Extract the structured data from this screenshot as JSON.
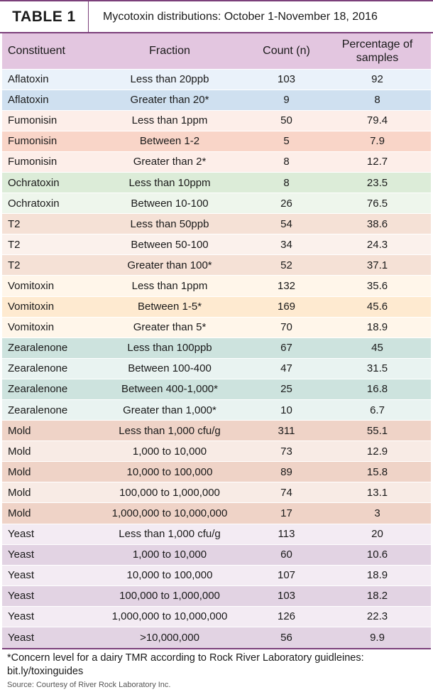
{
  "title": {
    "label": "TABLE 1",
    "text": "Mycotoxin distributions: October 1-November 18, 2016"
  },
  "columns": [
    "Constituent",
    "Fraction",
    "Count (n)",
    "Percentage of samples"
  ],
  "rows": [
    {
      "constituent": "Aflatoxin",
      "fraction": "Less than 20ppb",
      "count": "103",
      "percentage": "92",
      "color": "#eaf2fa"
    },
    {
      "constituent": "Aflatoxin",
      "fraction": "Greater than 20*",
      "count": "9",
      "percentage": "8",
      "color": "#cfe0f0"
    },
    {
      "constituent": "Fumonisin",
      "fraction": "Less than 1ppm",
      "count": "50",
      "percentage": "79.4",
      "color": "#fdeee9"
    },
    {
      "constituent": "Fumonisin",
      "fraction": "Between 1-2",
      "count": "5",
      "percentage": "7.9",
      "color": "#f9d5c8"
    },
    {
      "constituent": "Fumonisin",
      "fraction": "Greater than 2*",
      "count": "8",
      "percentage": "12.7",
      "color": "#fdeee9"
    },
    {
      "constituent": "Ochratoxin",
      "fraction": "Less than 10ppm",
      "count": "8",
      "percentage": "23.5",
      "color": "#dcecd8"
    },
    {
      "constituent": "Ochratoxin",
      "fraction": "Between 10-100",
      "count": "26",
      "percentage": "76.5",
      "color": "#eef6ec"
    },
    {
      "constituent": "T2",
      "fraction": "Less than 50ppb",
      "count": "54",
      "percentage": "38.6",
      "color": "#f5e1d6"
    },
    {
      "constituent": "T2",
      "fraction": "Between 50-100",
      "count": "34",
      "percentage": "24.3",
      "color": "#fbf1ec"
    },
    {
      "constituent": "T2",
      "fraction": "Greater than 100*",
      "count": "52",
      "percentage": "37.1",
      "color": "#f5e1d6"
    },
    {
      "constituent": "Vomitoxin",
      "fraction": "Less than 1ppm",
      "count": "132",
      "percentage": "35.6",
      "color": "#fff6ea"
    },
    {
      "constituent": "Vomitoxin",
      "fraction": "Between 1-5*",
      "count": "169",
      "percentage": "45.6",
      "color": "#feead0"
    },
    {
      "constituent": "Vomitoxin",
      "fraction": "Greater than 5*",
      "count": "70",
      "percentage": "18.9",
      "color": "#fff6ea"
    },
    {
      "constituent": "Zearalenone",
      "fraction": "Less than 100ppb",
      "count": "67",
      "percentage": "45",
      "color": "#cde3de"
    },
    {
      "constituent": "Zearalenone",
      "fraction": "Between 100-400",
      "count": "47",
      "percentage": "31.5",
      "color": "#e9f3f1"
    },
    {
      "constituent": "Zearalenone",
      "fraction": "Between 400-1,000*",
      "count": "25",
      "percentage": "16.8",
      "color": "#cde3de"
    },
    {
      "constituent": "Zearalenone",
      "fraction": "Greater than 1,000*",
      "count": "10",
      "percentage": "6.7",
      "color": "#e9f3f1"
    },
    {
      "constituent": "Mold",
      "fraction": "Less than 1,000 cfu/g",
      "count": "311",
      "percentage": "55.1",
      "color": "#efd3c7"
    },
    {
      "constituent": "Mold",
      "fraction": "1,000 to 10,000",
      "count": "73",
      "percentage": "12.9",
      "color": "#f8ebe5"
    },
    {
      "constituent": "Mold",
      "fraction": "10,000 to 100,000",
      "count": "89",
      "percentage": "15.8",
      "color": "#efd3c7"
    },
    {
      "constituent": "Mold",
      "fraction": "100,000 to 1,000,000",
      "count": "74",
      "percentage": "13.1",
      "color": "#f8ebe5"
    },
    {
      "constituent": "Mold",
      "fraction": "1,000,000 to 10,000,000",
      "count": "17",
      "percentage": "3",
      "color": "#efd3c7"
    },
    {
      "constituent": "Yeast",
      "fraction": "Less than 1,000 cfu/g",
      "count": "113",
      "percentage": "20",
      "color": "#f3ebf3"
    },
    {
      "constituent": "Yeast",
      "fraction": "1,000 to 10,000",
      "count": "60",
      "percentage": "10.6",
      "color": "#e2d3e3"
    },
    {
      "constituent": "Yeast",
      "fraction": "10,000 to 100,000",
      "count": "107",
      "percentage": "18.9",
      "color": "#f3ebf3"
    },
    {
      "constituent": "Yeast",
      "fraction": "100,000 to 1,000,000",
      "count": "103",
      "percentage": "18.2",
      "color": "#e2d3e3"
    },
    {
      "constituent": "Yeast",
      "fraction": "1,000,000 to 10,000,000",
      "count": "126",
      "percentage": "22.3",
      "color": "#f3ebf3"
    },
    {
      "constituent": "Yeast",
      "fraction": ">10,000,000",
      "count": "56",
      "percentage": "9.9",
      "color": "#e2d3e3"
    }
  ],
  "footnote": "*Concern level for a dairy TMR according to Rock River Laboratory guidleines: bit.ly/toxinguides",
  "source": "Source: Courtesy of River Rock Laboratory Inc."
}
